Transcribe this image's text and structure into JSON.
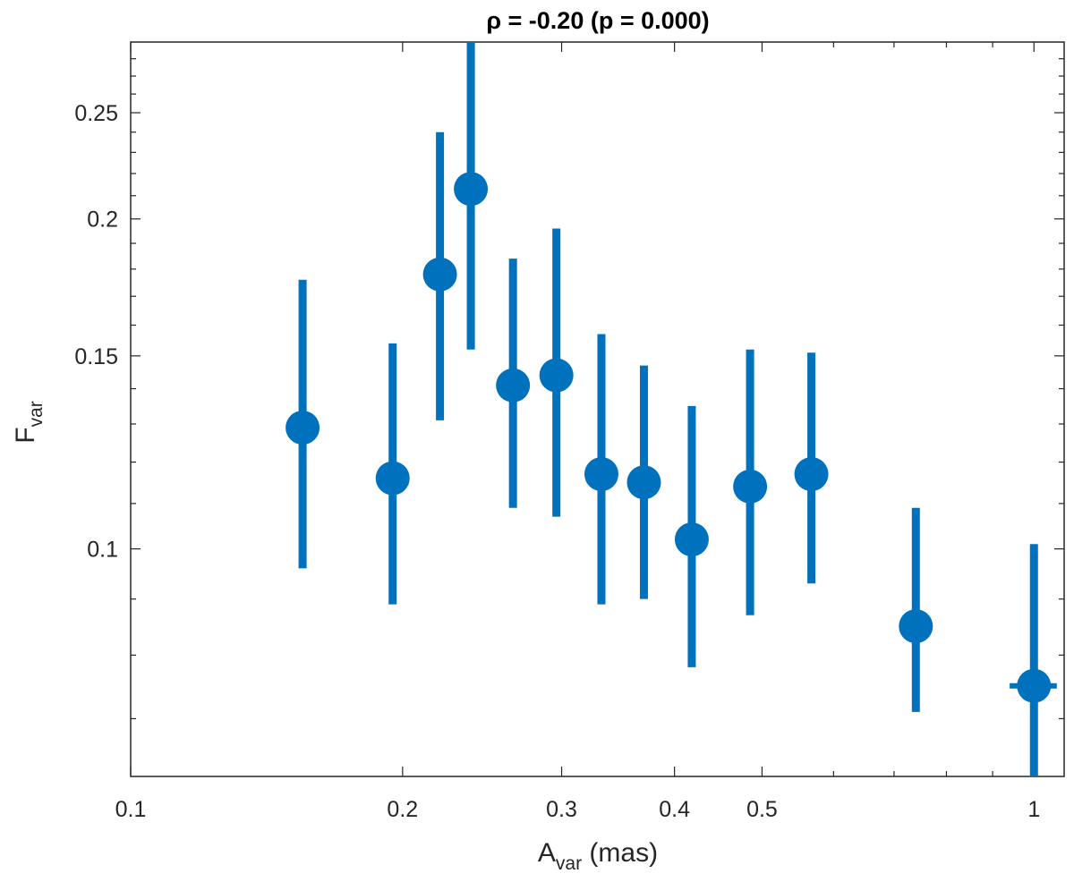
{
  "chart_data": {
    "type": "scatter",
    "title": "ρ = -0.20 (p = 0.000)",
    "xlabel": {
      "main": "A",
      "sub": "var",
      "unit": " (mas)"
    },
    "ylabel": {
      "main": "F",
      "sub": "var"
    },
    "xscale": "log",
    "yscale": "log",
    "xlim": [
      0.1,
      1.08
    ],
    "ylim": [
      0.062,
      0.29
    ],
    "grid": false,
    "xticks": [
      {
        "value": 0.1,
        "label": "0.1"
      },
      {
        "value": 0.2,
        "label": "0.2"
      },
      {
        "value": 0.3,
        "label": "0.3"
      },
      {
        "value": 0.4,
        "label": "0.4"
      },
      {
        "value": 0.5,
        "label": "0.5"
      },
      {
        "value": 1,
        "label": "1"
      }
    ],
    "xminor": [
      0.6,
      0.7,
      0.8,
      0.9
    ],
    "yticks": [
      {
        "value": 0.1,
        "label": "0.1"
      },
      {
        "value": 0.15,
        "label": "0.15"
      },
      {
        "value": 0.2,
        "label": "0.2"
      },
      {
        "value": 0.25,
        "label": "0.25"
      }
    ],
    "yminor": [
      0.07,
      0.08,
      0.09,
      0.11,
      0.12,
      0.13,
      0.14,
      0.16,
      0.17,
      0.18,
      0.19,
      0.21,
      0.22,
      0.23,
      0.24,
      0.26,
      0.27,
      0.28
    ],
    "series": [
      {
        "color": "#0072BD",
        "points": [
          {
            "x": 0.155,
            "y": 0.129,
            "ylo": 0.096,
            "yhi": 0.176,
            "xerr": 0.005
          },
          {
            "x": 0.195,
            "y": 0.116,
            "ylo": 0.089,
            "yhi": 0.154,
            "xerr": 0.007
          },
          {
            "x": 0.22,
            "y": 0.178,
            "ylo": 0.131,
            "yhi": 0.24,
            "xerr": 0.006
          },
          {
            "x": 0.238,
            "y": 0.213,
            "ylo": 0.152,
            "yhi": 0.29,
            "xerr": 0.007
          },
          {
            "x": 0.265,
            "y": 0.141,
            "ylo": 0.109,
            "yhi": 0.184,
            "xerr": 0.008
          },
          {
            "x": 0.296,
            "y": 0.144,
            "ylo": 0.107,
            "yhi": 0.196,
            "xerr": 0.009
          },
          {
            "x": 0.332,
            "y": 0.117,
            "ylo": 0.089,
            "yhi": 0.157,
            "xerr": 0.01
          },
          {
            "x": 0.37,
            "y": 0.115,
            "ylo": 0.09,
            "yhi": 0.147,
            "xerr": 0.011
          },
          {
            "x": 0.418,
            "y": 0.102,
            "ylo": 0.078,
            "yhi": 0.135,
            "xerr": 0.012
          },
          {
            "x": 0.485,
            "y": 0.114,
            "ylo": 0.087,
            "yhi": 0.152,
            "xerr": 0.014
          },
          {
            "x": 0.567,
            "y": 0.117,
            "ylo": 0.093,
            "yhi": 0.151,
            "xerr": 0.016
          },
          {
            "x": 0.74,
            "y": 0.085,
            "ylo": 0.071,
            "yhi": 0.109,
            "xerr": 0.018
          },
          {
            "x": 1.0,
            "y": 0.075,
            "ylo": 0.062,
            "yhi": 0.101,
            "xerr": 0.06
          }
        ]
      }
    ]
  }
}
